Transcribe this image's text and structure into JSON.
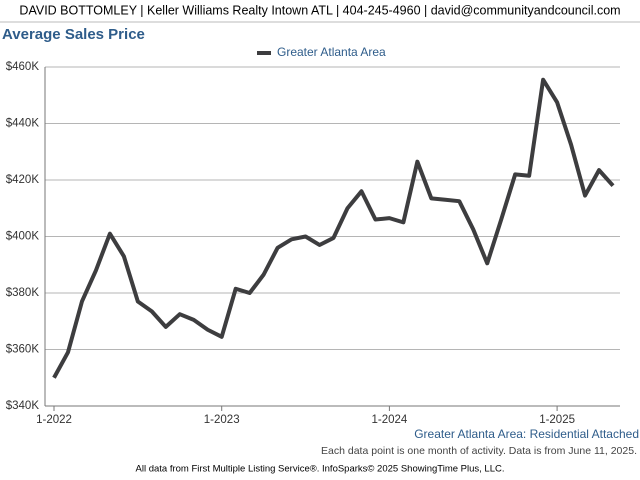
{
  "header": "DAVID BOTTOMLEY | Keller Williams Realty Intown ATL | 404-245-4960 | david@communityandcouncil.com",
  "chart_data": {
    "type": "line",
    "title": "Average Sales Price",
    "categories": [
      "1-2022",
      null,
      null,
      null,
      null,
      null,
      null,
      null,
      null,
      null,
      null,
      null,
      "1-2023",
      null,
      null,
      null,
      null,
      null,
      null,
      null,
      null,
      null,
      null,
      null,
      "1-2024",
      null,
      null,
      null,
      null,
      null,
      null,
      null,
      null,
      null,
      null,
      null,
      "1-2025",
      null,
      null,
      null,
      null
    ],
    "series": [
      {
        "name": "Greater Atlanta Area",
        "color": "#3d3d3f",
        "values": [
          350000,
          359000,
          377000,
          388000,
          401000,
          393000,
          377000,
          373500,
          368000,
          372500,
          370500,
          367000,
          364500,
          381500,
          380000,
          386500,
          396000,
          399000,
          400000,
          397000,
          399500,
          410000,
          416000,
          406000,
          406500,
          405000,
          426500,
          413500,
          413000,
          412500,
          402500,
          390500,
          406000,
          422000,
          421500,
          455500,
          447500,
          432500,
          414500,
          423500,
          418000
        ]
      }
    ],
    "ylim": [
      340000,
      460000
    ],
    "yticks": [
      {
        "value": 340000,
        "label": "$340K"
      },
      {
        "value": 360000,
        "label": "$360K"
      },
      {
        "value": 380000,
        "label": "$380K"
      },
      {
        "value": 400000,
        "label": "$400K"
      },
      {
        "value": 420000,
        "label": "$420K"
      },
      {
        "value": 440000,
        "label": "$440K"
      },
      {
        "value": 460000,
        "label": "$460K"
      }
    ],
    "grid": true,
    "legend": "top",
    "annotations": [
      "Greater Atlanta Area: Residential Attached",
      "Each data point is one month of activity. Data is from June 11, 2025."
    ]
  },
  "footer": "All data from First Multiple Listing Service®. InfoSparks© 2025 ShowingTime Plus, LLC."
}
